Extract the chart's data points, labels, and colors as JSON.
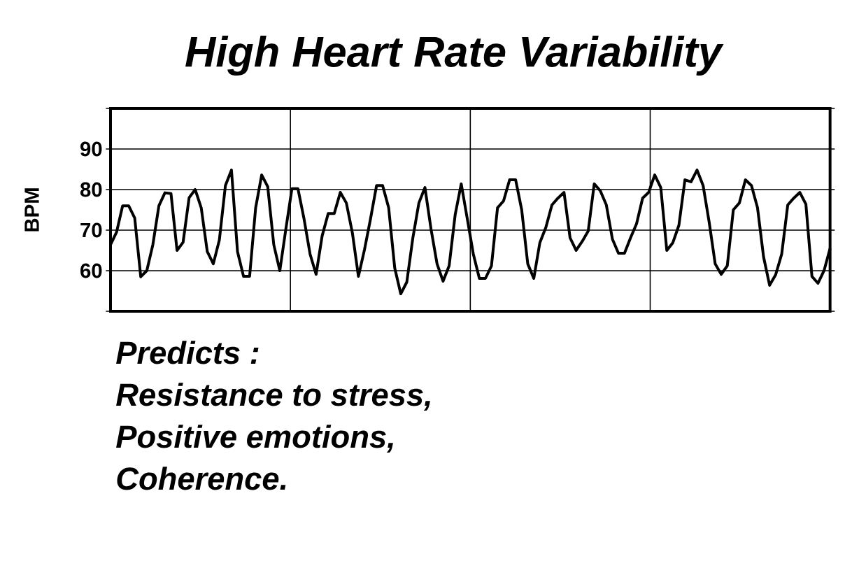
{
  "chart_data": {
    "type": "line",
    "title": "High Heart Rate Variability",
    "ylabel": "BPM",
    "annotations": [
      "Predicts :",
      "Resistance to stress,",
      "Positive emotions,",
      "Coherence."
    ],
    "categories": [
      null,
      null,
      null,
      null,
      null,
      null,
      null,
      null,
      null,
      null,
      null,
      null,
      null,
      null,
      null,
      null,
      null,
      null,
      null,
      null,
      null,
      null,
      null,
      null,
      null,
      null,
      null,
      null,
      null,
      null,
      null,
      null,
      null,
      null,
      null,
      null,
      null,
      null,
      null,
      null,
      null,
      null,
      null,
      null,
      null,
      null,
      null,
      null,
      null,
      null,
      null,
      null,
      null,
      null,
      null,
      null,
      null,
      null,
      null,
      null,
      null,
      null,
      null,
      null,
      null,
      null,
      null,
      null,
      null,
      null,
      null,
      null,
      null,
      null,
      null,
      null,
      null,
      null,
      null,
      null,
      null,
      null,
      null,
      null,
      null,
      null,
      null,
      null,
      null,
      null,
      null,
      null,
      null,
      null,
      null,
      null,
      null,
      null,
      null,
      null,
      null,
      null,
      null,
      null,
      null,
      null,
      null,
      null,
      null,
      null,
      null,
      null,
      null,
      null,
      null,
      null,
      null,
      null,
      null,
      null
    ],
    "ylim": [
      50,
      100
    ],
    "yticks": [
      {
        "value": 50,
        "label": null
      },
      60,
      70,
      80,
      90,
      {
        "value": 100,
        "label": null
      }
    ],
    "grid": true,
    "tick_labels": "y",
    "series": [
      {
        "color": "#000000",
        "values": [
          66.4,
          69.5,
          76,
          76,
          73,
          58.5,
          60,
          66.4,
          76,
          79.2,
          79,
          65,
          67,
          78,
          80,
          75.5,
          64.7,
          61.7,
          67.6,
          81,
          84.8,
          64.7,
          58.6,
          58.6,
          75.5,
          83.6,
          80.7,
          66.4,
          60,
          70.3,
          80.2,
          80.2,
          72.8,
          64.1,
          59.1,
          68.6,
          74.1,
          74.1,
          79.3,
          76.7,
          69.3,
          58.6,
          65.2,
          72.8,
          81,
          81,
          75.5,
          60.7,
          54.3,
          57.2,
          68.1,
          76.7,
          80.5,
          70.3,
          61.7,
          57.4,
          61.2,
          73.8,
          81.4,
          72.8,
          64.1,
          58.1,
          58.1,
          61.2,
          75.5,
          77.2,
          82.4,
          82.4,
          75,
          61.7,
          58.1,
          66.9,
          70.7,
          76.2,
          77.9,
          79.3,
          68.1,
          65,
          67.2,
          69.8,
          81.4,
          79.7,
          76.2,
          67.8,
          64.3,
          64.3,
          68.1,
          71.6,
          77.9,
          79.3,
          83.6,
          80.5,
          65,
          66.9,
          71.2,
          82.4,
          81.9,
          84.8,
          81,
          72,
          61.7,
          59.1,
          61.2,
          75,
          76.7,
          82.4,
          81,
          75.5,
          63.4,
          56.4,
          59,
          64.1,
          76.2,
          77.9,
          79.3,
          76.4,
          58.6,
          56.9,
          60,
          65.5
        ]
      }
    ]
  }
}
